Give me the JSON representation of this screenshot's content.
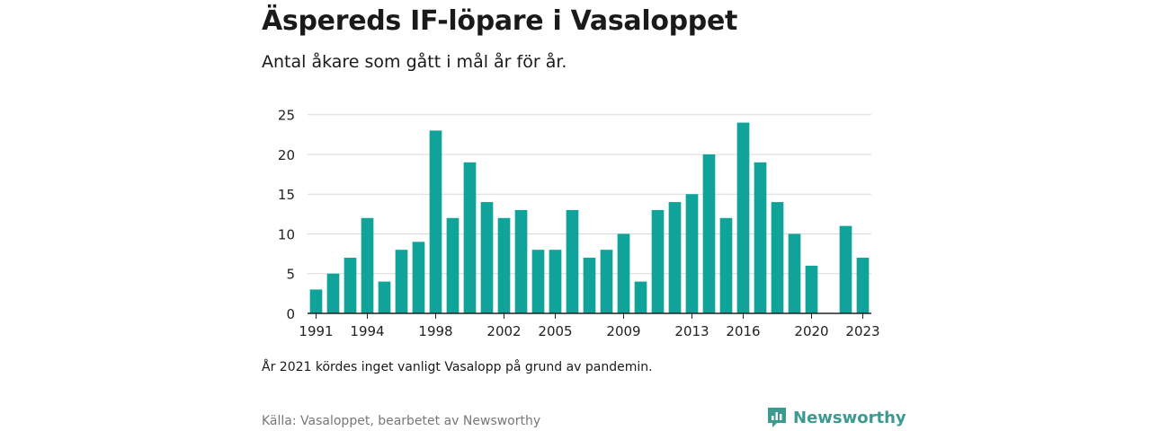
{
  "title": "Äspereds IF-löpare i Vasaloppet",
  "subtitle": "Antal åkare som gått i mål år för år.",
  "note": "År 2021 kördes inget vanligt Vasalopp på grund av pandemin.",
  "source": "Källa: Vasaloppet, bearbetet av Newsworthy",
  "brand": {
    "name": "Newsworthy",
    "icon": "newsworthy-logo-icon",
    "color": "#3d9a90"
  },
  "colors": {
    "bar": "#10a399",
    "grid": "#d9d9d9",
    "axis": "#222222"
  },
  "chart_data": {
    "type": "bar",
    "categories": [
      1991,
      1992,
      1993,
      1994,
      1995,
      1996,
      1997,
      1998,
      1999,
      2000,
      2001,
      2002,
      2003,
      2004,
      2005,
      2006,
      2007,
      2008,
      2009,
      2010,
      2011,
      2012,
      2013,
      2014,
      2015,
      2016,
      2017,
      2018,
      2019,
      2020,
      2021,
      2022,
      2023
    ],
    "values": [
      3,
      5,
      7,
      12,
      4,
      8,
      9,
      23,
      12,
      19,
      14,
      12,
      13,
      8,
      8,
      13,
      7,
      8,
      10,
      4,
      13,
      14,
      15,
      20,
      12,
      24,
      19,
      14,
      10,
      6,
      null,
      11,
      7
    ],
    "x_tick_labels": [
      "1991",
      "1994",
      "1998",
      "2002",
      "2005",
      "2009",
      "2013",
      "2016",
      "2020",
      "2023"
    ],
    "y_ticks": [
      0,
      5,
      10,
      15,
      20,
      25
    ],
    "ylim": [
      0,
      27
    ],
    "grid": true,
    "legend": "none",
    "xlabel": "",
    "ylabel": ""
  }
}
